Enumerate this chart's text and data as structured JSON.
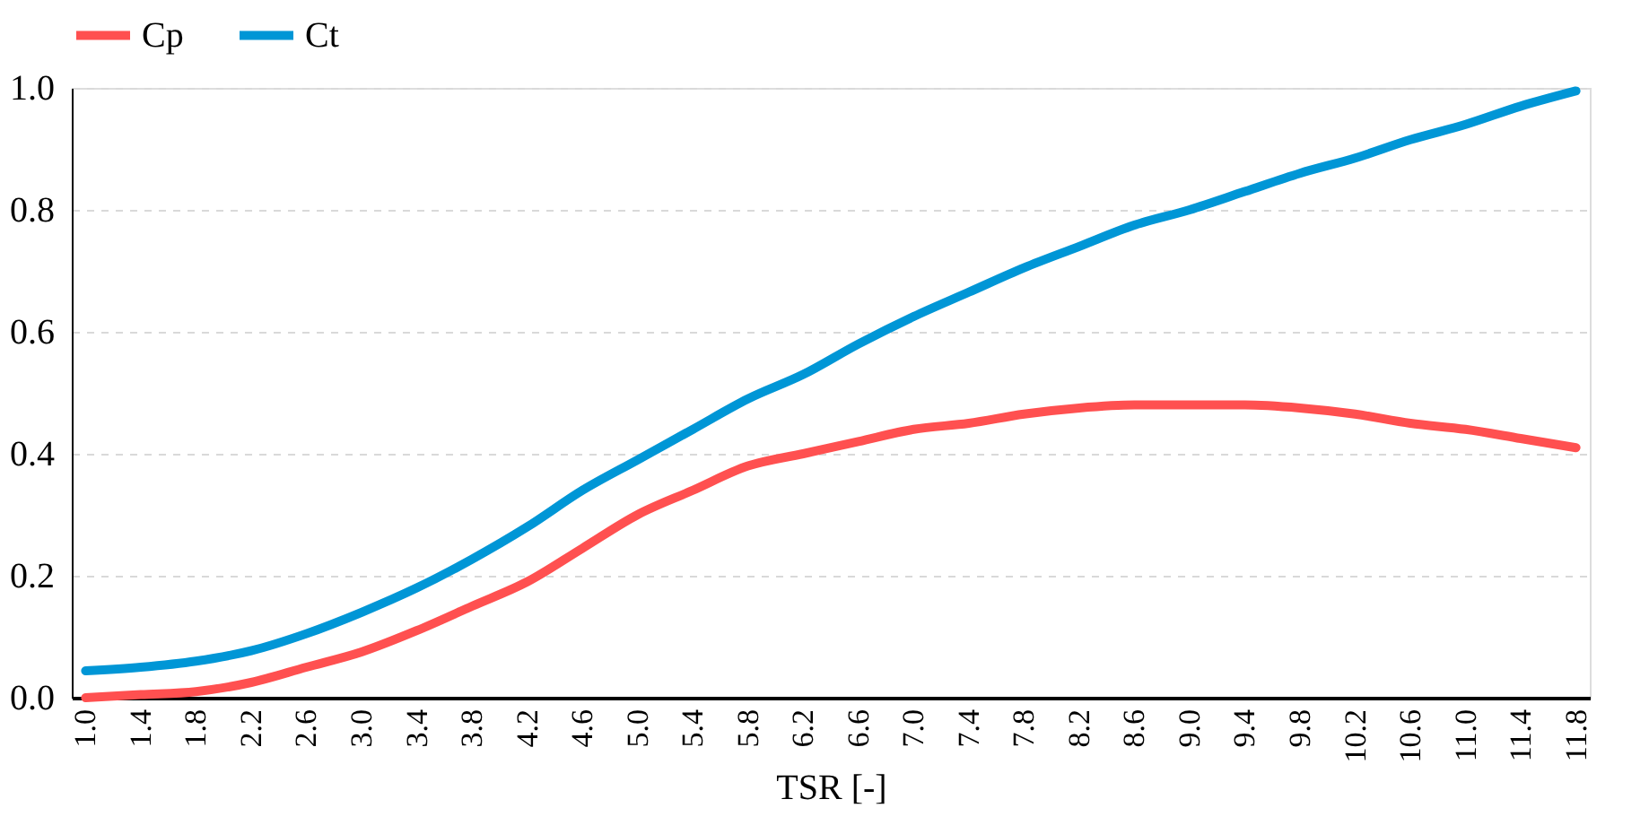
{
  "chart_data": {
    "type": "line",
    "xlabel": "TSR [-]",
    "x": [
      1.0,
      1.4,
      1.8,
      2.2,
      2.6,
      3.0,
      3.4,
      3.8,
      4.2,
      4.6,
      5.0,
      5.4,
      5.8,
      6.2,
      6.6,
      7.0,
      7.4,
      7.8,
      8.2,
      8.6,
      9.0,
      9.4,
      9.8,
      10.2,
      10.6,
      11.0,
      11.4,
      11.8
    ],
    "series": [
      {
        "name": "Cp",
        "color": "#ff5050",
        "values": [
          0.0,
          0.005,
          0.01,
          0.025,
          0.05,
          0.075,
          0.11,
          0.15,
          0.19,
          0.245,
          0.3,
          0.34,
          0.38,
          0.4,
          0.42,
          0.44,
          0.45,
          0.465,
          0.475,
          0.48,
          0.48,
          0.48,
          0.475,
          0.465,
          0.45,
          0.44,
          0.425,
          0.41
        ]
      },
      {
        "name": "Ct",
        "color": "#0096d6",
        "values": [
          0.044,
          0.05,
          0.06,
          0.077,
          0.105,
          0.14,
          0.18,
          0.227,
          0.28,
          0.34,
          0.39,
          0.44,
          0.49,
          0.53,
          0.58,
          0.625,
          0.665,
          0.705,
          0.74,
          0.775,
          0.8,
          0.83,
          0.86,
          0.885,
          0.915,
          0.94,
          0.97,
          0.995
        ]
      }
    ],
    "xlim": [
      0.9,
      11.9
    ],
    "xticks": [
      {
        "value": 1.0,
        "label": "1.0"
      },
      {
        "value": 1.4,
        "label": "1.4"
      },
      {
        "value": 1.8,
        "label": "1.8"
      },
      {
        "value": 2.2,
        "label": "2.2"
      },
      {
        "value": 2.6,
        "label": "2.6"
      },
      {
        "value": 3.0,
        "label": "3.0"
      },
      {
        "value": 3.4,
        "label": "3.4"
      },
      {
        "value": 3.8,
        "label": "3.8"
      },
      {
        "value": 4.2,
        "label": "4.2"
      },
      {
        "value": 4.6,
        "label": "4.6"
      },
      {
        "value": 5.0,
        "label": "5.0"
      },
      {
        "value": 5.4,
        "label": "5.4"
      },
      {
        "value": 5.8,
        "label": "5.8"
      },
      {
        "value": 6.2,
        "label": "6.2"
      },
      {
        "value": 6.6,
        "label": "6.6"
      },
      {
        "value": 7.0,
        "label": "7.0"
      },
      {
        "value": 7.4,
        "label": "7.4"
      },
      {
        "value": 7.8,
        "label": "7.8"
      },
      {
        "value": 8.2,
        "label": "8.2"
      },
      {
        "value": 8.6,
        "label": "8.6"
      },
      {
        "value": 9.0,
        "label": "9.0"
      },
      {
        "value": 9.4,
        "label": "9.4"
      },
      {
        "value": 9.8,
        "label": "9.8"
      },
      {
        "value": 10.2,
        "label": "10.2"
      },
      {
        "value": 10.6,
        "label": "10.6"
      },
      {
        "value": 11.0,
        "label": "11.0"
      },
      {
        "value": 11.4,
        "label": "11.4"
      },
      {
        "value": 11.8,
        "label": "11.8"
      }
    ],
    "ylim": [
      0.0,
      1.0
    ],
    "yticks": [
      {
        "value": 0.0,
        "label": "0.0"
      },
      {
        "value": 0.2,
        "label": "0.2"
      },
      {
        "value": 0.4,
        "label": "0.4"
      },
      {
        "value": 0.6,
        "label": "0.6"
      },
      {
        "value": 0.8,
        "label": "0.8"
      },
      {
        "value": 1.0,
        "label": "1.0"
      }
    ],
    "grid": "y",
    "legend": "top",
    "marker": "none",
    "line_style": "solid"
  }
}
